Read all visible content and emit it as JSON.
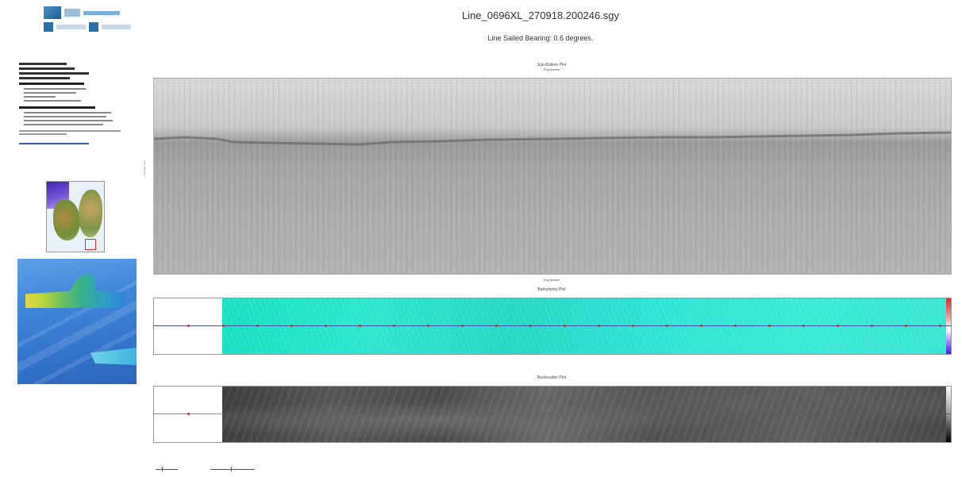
{
  "header": {
    "title": "Line_0696XL_270918.200246.sgy",
    "subtitle": "Line Sailed Bearing: 0.6 degrees."
  },
  "panels": {
    "sub_bottom": {
      "title": "Sub-Bottom Plot",
      "top_axis_label": "Ping Number",
      "bottom_axis_label": "Ping Number",
      "y_axis_label": "Two-Way Time"
    },
    "bathymetry": {
      "title": "Bathymetry Plot"
    },
    "sidescan": {
      "title": "Backscatter Plot"
    }
  },
  "colors": {
    "bathymetry": "#2ee6cf",
    "track_line": "#4455aa",
    "track_marker": "#cc2a2a",
    "logo_blue": "#1f5f92"
  },
  "icons": [
    "logo-mark-icon",
    "location-map-icon",
    "scale-bar-icon"
  ]
}
